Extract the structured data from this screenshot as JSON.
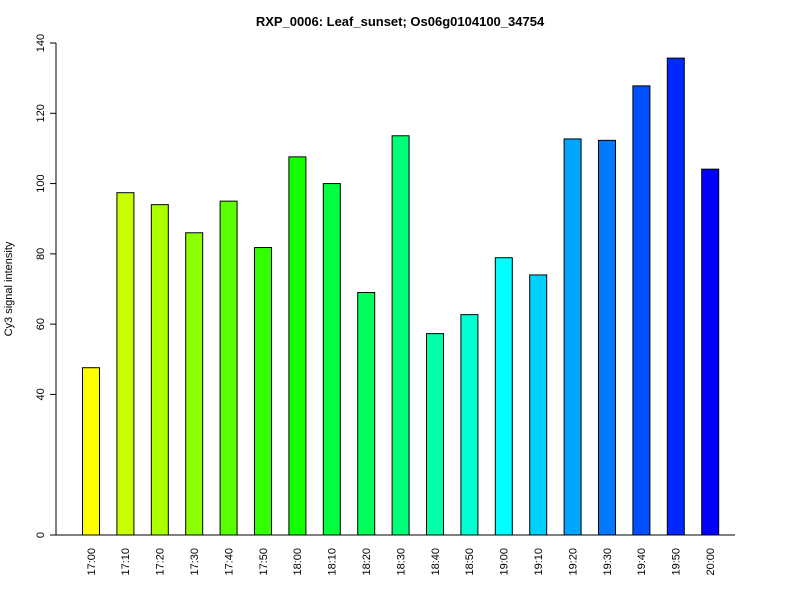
{
  "chart_data": {
    "type": "bar",
    "title": "RXP_0006: Leaf_sunset; Os06g0104100_34754",
    "xlabel": "",
    "ylabel": "Cy3 signal intensity",
    "ylim": [
      0,
      140
    ],
    "yticks": [
      0,
      40,
      60,
      80,
      100,
      120,
      140
    ],
    "categories": [
      "17:00",
      "17:10",
      "17:20",
      "17:30",
      "17:40",
      "17:50",
      "18:00",
      "18:10",
      "18:20",
      "18:30",
      "18:40",
      "18:50",
      "19:00",
      "19:10",
      "19:20",
      "19:30",
      "19:40",
      "19:50",
      "20:00"
    ],
    "values": [
      47.6,
      97.4,
      94.0,
      86.0,
      95.0,
      81.8,
      107.6,
      100.0,
      69.0,
      113.6,
      57.3,
      62.7,
      78.9,
      74.0,
      112.7,
      112.3,
      127.8,
      135.7,
      104.1
    ],
    "colors": [
      "#ffff00",
      "#c8ff00",
      "#aaff00",
      "#8cff00",
      "#5aff00",
      "#32ff00",
      "#14ff00",
      "#00ff3c",
      "#00ff5a",
      "#00ff78",
      "#00ffaa",
      "#00ffd2",
      "#00ffff",
      "#00d2ff",
      "#00a5ff",
      "#0078ff",
      "#0050ff",
      "#0028ff",
      "#0000ff"
    ],
    "bar_border_color": "#000000"
  }
}
